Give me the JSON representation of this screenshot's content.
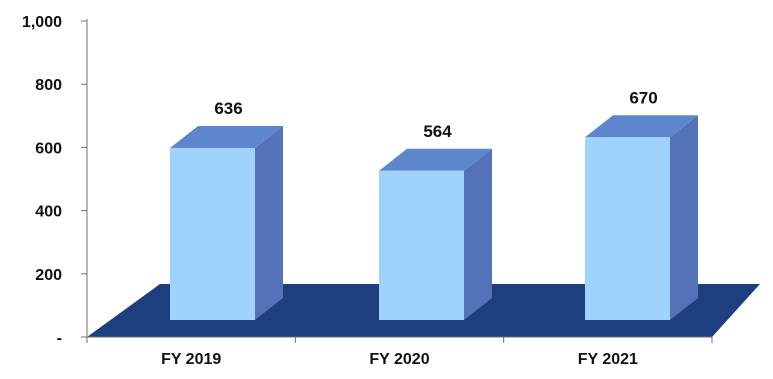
{
  "chart_data": {
    "type": "bar",
    "title": "",
    "xlabel": "",
    "ylabel": "",
    "categories": [
      "FY 2019",
      "FY 2020",
      "FY 2021"
    ],
    "values": [
      636,
      564,
      670
    ],
    "value_labels": [
      "636",
      "564",
      "670"
    ],
    "ylim": [
      0,
      1000
    ],
    "y_ticks": [
      0,
      200,
      400,
      600,
      800,
      1000
    ],
    "y_tick_labels": [
      "-",
      "200",
      "400",
      "600",
      "800",
      "1,000"
    ],
    "style": "3d-column",
    "grid": false,
    "legend": "none",
    "colors": {
      "bar_front": "#9fd3fb",
      "bar_top": "#5d86cc",
      "bar_side": "#5472b8",
      "floor": "#1e3f7e",
      "axis": "#6f6f6f",
      "text": "#111111"
    }
  }
}
